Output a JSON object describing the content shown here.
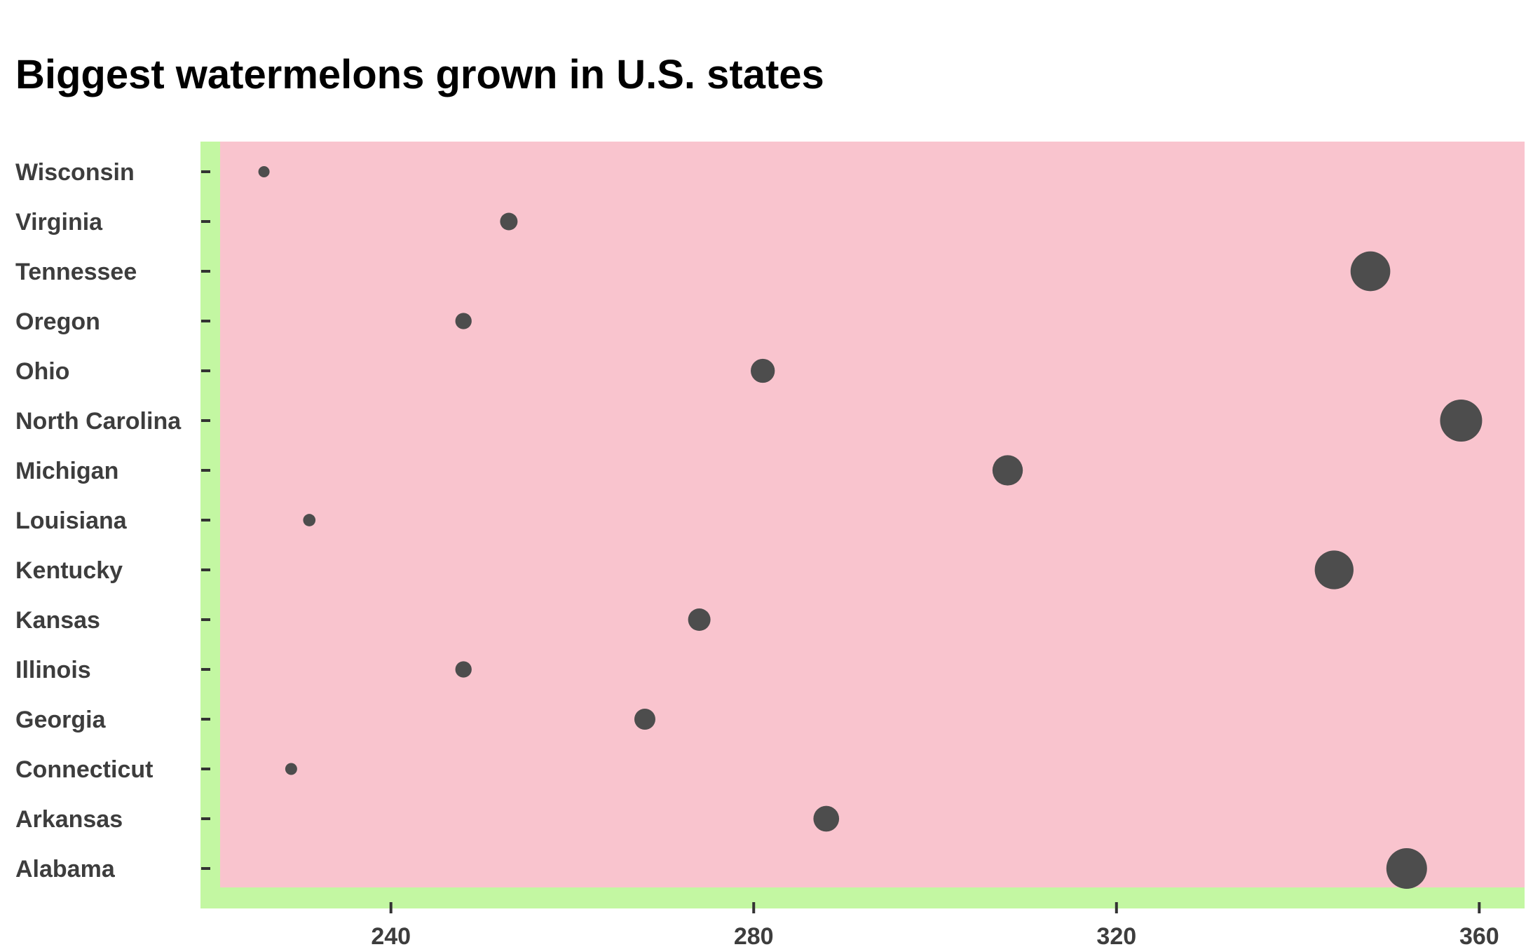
{
  "chart_data": {
    "type": "scatter",
    "title": "Biggest watermelons grown in U.S. states",
    "xlabel": "",
    "ylabel": "",
    "categories": [
      "Alabama",
      "Arkansas",
      "Connecticut",
      "Georgia",
      "Illinois",
      "Kansas",
      "Kentucky",
      "Louisiana",
      "Michigan",
      "North Carolina",
      "Ohio",
      "Oregon",
      "Tennessee",
      "Virginia",
      "Wisconsin"
    ],
    "values": [
      352,
      288,
      229,
      268,
      248,
      274,
      344,
      231,
      308,
      358,
      281,
      248,
      348,
      253,
      226
    ],
    "size_encodes": "value",
    "xlim": [
      219,
      365
    ],
    "xticks": [
      240,
      280,
      320,
      360
    ],
    "grid": false,
    "legend": "none",
    "colors": {
      "panel": "#f9c4ce",
      "axis_band": "#c3f7a2",
      "point": "#4d4d4d",
      "tick_text": "#3d3d3d"
    }
  }
}
